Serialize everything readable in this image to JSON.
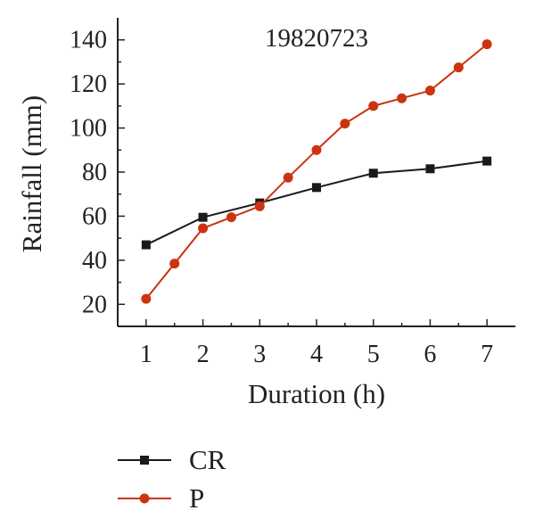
{
  "chart_data": {
    "type": "line",
    "title": "19820723",
    "xlabel": "Duration (h)",
    "ylabel": "Rainfall (mm)",
    "xlim": [
      0.5,
      7.5
    ],
    "ylim": [
      10,
      150
    ],
    "x_ticks": [
      1,
      2,
      3,
      4,
      5,
      6,
      7
    ],
    "y_ticks": [
      20,
      40,
      60,
      80,
      100,
      120,
      140
    ],
    "grid": false,
    "legend_position": "bottom-left",
    "series": [
      {
        "name": "CR",
        "color": "#1a1a1a",
        "marker": "square",
        "x": [
          1,
          2,
          3,
          4,
          5,
          6,
          7
        ],
        "y": [
          47,
          59.5,
          66,
          73,
          79.5,
          81.5,
          85
        ]
      },
      {
        "name": "P",
        "color": "#cc3311",
        "marker": "circle",
        "x": [
          1,
          1.5,
          2,
          2.5,
          3,
          3.5,
          4,
          4.5,
          5,
          5.5,
          6,
          6.5,
          7
        ],
        "y": [
          22.5,
          38.5,
          54.5,
          59.5,
          64.5,
          77.5,
          90,
          102,
          110,
          113.5,
          117,
          127.5,
          138
        ]
      }
    ]
  }
}
